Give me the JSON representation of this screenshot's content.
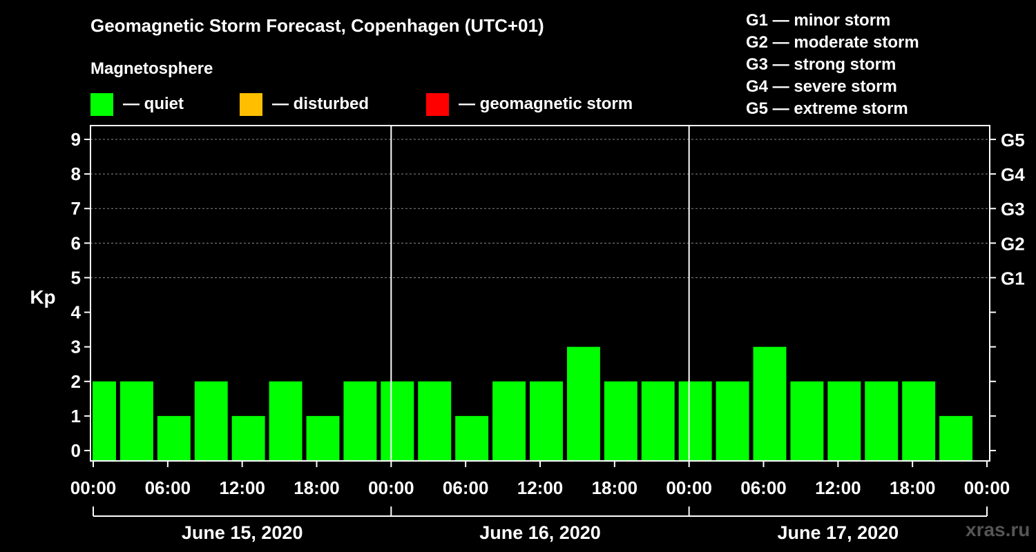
{
  "chart_data": {
    "type": "bar",
    "title": "Geomagnetic Storm Forecast, Copenhagen (UTC+01)",
    "ylabel": "Kp",
    "ylim": [
      -0.3,
      9.4
    ],
    "yticks": [
      "0",
      "1",
      "2",
      "3",
      "4",
      "5",
      "6",
      "7",
      "8",
      "9"
    ],
    "right_axis_labels": [
      {
        "kp": 5,
        "label": "G1"
      },
      {
        "kp": 6,
        "label": "G2"
      },
      {
        "kp": 7,
        "label": "G3"
      },
      {
        "kp": 8,
        "label": "G4"
      },
      {
        "kp": 9,
        "label": "G5"
      }
    ],
    "x_tick_labels": [
      "00:00",
      "06:00",
      "12:00",
      "18:00",
      "00:00",
      "06:00",
      "12:00",
      "18:00",
      "00:00",
      "06:00",
      "12:00",
      "18:00",
      "00:00"
    ],
    "days": [
      "June 15, 2020",
      "June 16, 2020",
      "June 17, 2020"
    ],
    "x_start_hours": 0.5,
    "values": [
      2,
      2,
      1,
      2,
      1,
      2,
      1,
      2,
      2,
      2,
      1,
      2,
      2,
      3,
      2,
      2,
      2,
      2,
      3,
      2,
      2,
      2,
      2,
      1
    ],
    "bar_color": "#00ff00",
    "grid": "dashed horizontal lines at Kp 5-9",
    "magnetosphere_legend": {
      "title": "Magnetosphere",
      "items": [
        {
          "label": "— quiet",
          "color": "#00ff00"
        },
        {
          "label": "— disturbed",
          "color": "#ffbf00"
        },
        {
          "label": "— geomagnetic storm",
          "color": "#ff0000"
        }
      ]
    },
    "storm_scale_legend": [
      "G1 — minor storm",
      "G2 — moderate storm",
      "G3 — strong storm",
      "G4 — severe storm",
      "G5 — extreme storm"
    ],
    "watermark": "xras.ru"
  }
}
